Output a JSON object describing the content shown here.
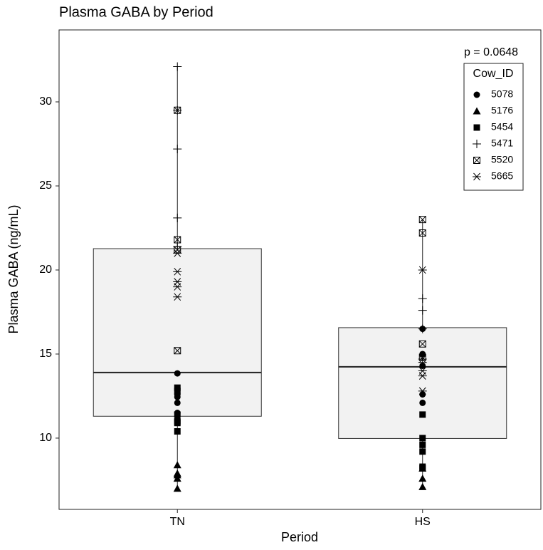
{
  "chart_data": {
    "type": "box",
    "title": "Plasma GABA by Period",
    "x_label": "Period",
    "y_label": "Plasma GABA (ng/mL)",
    "annotation": "p = 0.0648",
    "legend_title": "Cow_ID",
    "legend_position": "top-right",
    "categories": [
      "TN",
      "HS"
    ],
    "ylim": [
      5.76,
      34.28
    ],
    "yticks": [
      10,
      15,
      20,
      25,
      30
    ],
    "box_color": "#f0f0f0",
    "boxes": [
      {
        "whisker_low": 7.0,
        "q1": 11.3,
        "median": 13.9,
        "q3": 21.27,
        "whisker_high": 32.1
      },
      {
        "whisker_low": 7.1,
        "q1": 9.98,
        "median": 14.24,
        "q3": 16.57,
        "whisker_high": 23.0
      }
    ],
    "series": [
      {
        "name": "5078",
        "shape": "circle",
        "values": [
          [
            13.85,
            12.6,
            12.45,
            12.1,
            11.5,
            11.1
          ],
          [
            16.5,
            15.0,
            14.3,
            12.6,
            12.1
          ]
        ]
      },
      {
        "name": "5176",
        "shape": "triangle",
        "values": [
          [
            8.4,
            7.9,
            7.8,
            7.6,
            7.0
          ],
          [
            8.2,
            7.6,
            7.1
          ]
        ]
      },
      {
        "name": "5454",
        "shape": "square",
        "values": [
          [
            13.0,
            12.8,
            11.4,
            11.0,
            10.9,
            10.4
          ],
          [
            11.4,
            10.0,
            9.6,
            9.2,
            8.3,
            8.2
          ]
        ]
      },
      {
        "name": "5471",
        "shape": "plus",
        "values": [
          [
            32.1,
            29.5,
            27.2,
            23.1,
            21.4
          ],
          [
            18.3,
            17.6,
            16.5,
            14.5
          ]
        ]
      },
      {
        "name": "5520",
        "shape": "square-x",
        "values": [
          [
            29.5,
            21.8,
            21.2,
            15.2
          ],
          [
            23.0,
            22.2,
            15.6,
            14.8
          ]
        ]
      },
      {
        "name": "5665",
        "shape": "asterisk",
        "values": [
          [
            21.0,
            19.9,
            19.3,
            19.0,
            18.4
          ],
          [
            20.0,
            14.7,
            14.0,
            13.7,
            12.8
          ]
        ]
      }
    ]
  }
}
